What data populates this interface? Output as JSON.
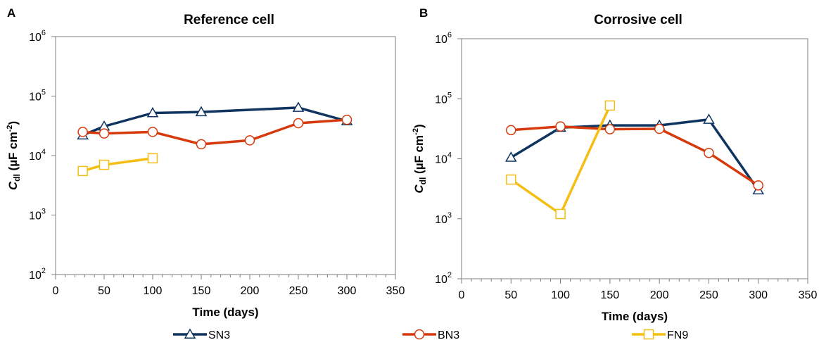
{
  "series_styles": [
    {
      "name": "SN3",
      "color": "#0f3460",
      "marker": "triangle"
    },
    {
      "name": "BN3",
      "color": "#d63a0c",
      "marker": "circle"
    },
    {
      "name": "FN9",
      "color": "#f5be13",
      "marker": "square"
    }
  ],
  "chart_data": [
    {
      "panel": "A",
      "type": "line",
      "title": "Reference cell",
      "xlabel": "Time (days)",
      "ylabel": "Cdl (µF cm-2)",
      "ylabel_parts": {
        "c": "C",
        "sub": "dl",
        "rest": " (µF cm",
        "sup": "-2",
        "close": ")"
      },
      "xlim": [
        0,
        350
      ],
      "xticks": [
        0,
        50,
        100,
        150,
        200,
        250,
        300,
        350
      ],
      "yscale": "log",
      "ylim": [
        100,
        1000000
      ],
      "yticks": [
        {
          "base": "10",
          "exp": "2"
        },
        {
          "base": "10",
          "exp": "3"
        },
        {
          "base": "10",
          "exp": "4"
        },
        {
          "base": "10",
          "exp": "5"
        },
        {
          "base": "10",
          "exp": "6"
        }
      ],
      "grid": false,
      "series": [
        {
          "name": "SN3",
          "x": [
            28,
            50,
            100,
            150,
            250,
            300
          ],
          "y": [
            22000,
            31000,
            52000,
            54000,
            64000,
            38000
          ]
        },
        {
          "name": "BN3",
          "x": [
            28,
            50,
            100,
            150,
            200,
            250,
            300
          ],
          "y": [
            25000,
            23500,
            25000,
            15500,
            18000,
            35000,
            40000
          ]
        },
        {
          "name": "FN9",
          "x": [
            28,
            50,
            100
          ],
          "y": [
            5500,
            7000,
            9000
          ]
        }
      ]
    },
    {
      "panel": "B",
      "type": "line",
      "title": "Corrosive cell",
      "xlabel": "Time (days)",
      "ylabel": "Cdl (µF cm-2)",
      "ylabel_parts": {
        "c": "C",
        "sub": "dl",
        "rest": " (µF cm",
        "sup": "-2",
        "close": ")"
      },
      "xlim": [
        0,
        350
      ],
      "xticks": [
        0,
        50,
        100,
        150,
        200,
        250,
        300,
        350
      ],
      "yscale": "log",
      "ylim": [
        100,
        1000000
      ],
      "yticks": [
        {
          "base": "10",
          "exp": "2"
        },
        {
          "base": "10",
          "exp": "3"
        },
        {
          "base": "10",
          "exp": "4"
        },
        {
          "base": "10",
          "exp": "5"
        },
        {
          "base": "10",
          "exp": "6"
        }
      ],
      "grid": false,
      "series": [
        {
          "name": "SN3",
          "x": [
            50,
            100,
            150,
            200,
            250,
            300
          ],
          "y": [
            10500,
            33000,
            36000,
            36000,
            45000,
            3000
          ]
        },
        {
          "name": "BN3",
          "x": [
            50,
            100,
            150,
            200,
            250,
            300
          ],
          "y": [
            30000,
            34500,
            31000,
            31500,
            12500,
            3600
          ]
        },
        {
          "name": "FN9",
          "x": [
            50,
            100,
            150
          ],
          "y": [
            4500,
            1200,
            77000
          ]
        }
      ]
    }
  ],
  "legend": {
    "placement": "bottom",
    "items": [
      "SN3",
      "BN3",
      "FN9"
    ]
  }
}
